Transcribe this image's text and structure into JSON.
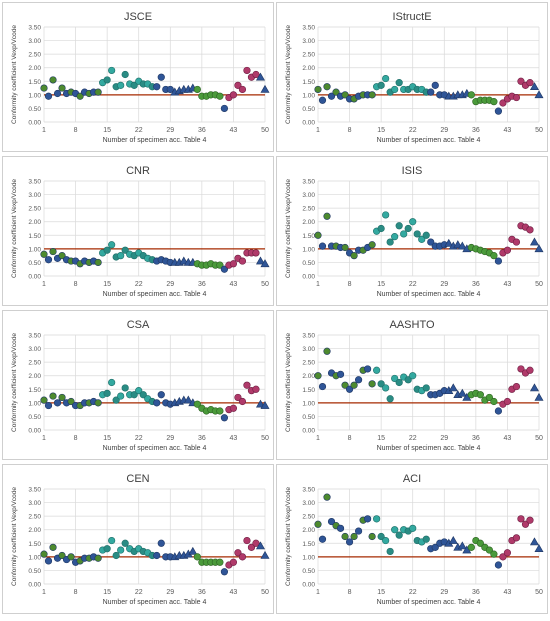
{
  "chart_data": [
    {
      "type": "scatter",
      "title": "JSCE",
      "xlabel": "Number of specimen acc. Table 4",
      "ylabel": "Conformity coefficient    Vexp/Vcode",
      "xlim": [
        1,
        50
      ],
      "ylim": [
        0,
        3.5
      ],
      "x_ticks": [
        "1",
        "8",
        "15",
        "22",
        "29",
        "36",
        "43",
        "50"
      ],
      "y_ticks": [
        "0.00",
        "0.50",
        "1.00",
        "1.50",
        "2.00",
        "2.50",
        "3.00",
        "3.50"
      ],
      "reference_line": 1.0,
      "grid": true,
      "x": [
        1,
        2,
        3,
        4,
        5,
        6,
        7,
        8,
        9,
        10,
        11,
        12,
        13,
        14,
        15,
        16,
        17,
        18,
        19,
        20,
        21,
        22,
        23,
        24,
        25,
        26,
        27,
        28,
        29,
        30,
        31,
        32,
        33,
        34,
        35,
        36,
        37,
        38,
        39,
        40,
        41,
        42,
        43,
        44,
        45,
        46,
        47,
        48,
        49,
        50
      ],
      "y": [
        1.25,
        0.95,
        1.55,
        1.05,
        1.25,
        1.05,
        1.1,
        1.05,
        0.95,
        1.1,
        1.05,
        1.1,
        1.1,
        1.45,
        1.55,
        1.9,
        1.3,
        1.35,
        1.75,
        1.4,
        1.35,
        1.5,
        1.4,
        1.4,
        1.3,
        1.3,
        1.65,
        1.2,
        1.2,
        1.1,
        1.15,
        1.2,
        1.2,
        1.25,
        1.2,
        0.95,
        0.95,
        1.0,
        1.0,
        0.95,
        0.5,
        0.9,
        1.0,
        1.35,
        1.2,
        1.9,
        1.65,
        1.75,
        1.65,
        1.2
      ]
    },
    {
      "type": "scatter",
      "title": "IStructE",
      "xlabel": "Number of specimen acc. Table 4",
      "ylabel": "Conformity coefficient    Vexp/Vcode",
      "xlim": [
        1,
        50
      ],
      "ylim": [
        0,
        3.5
      ],
      "x_ticks": [
        "1",
        "8",
        "15",
        "22",
        "29",
        "36",
        "43",
        "50"
      ],
      "y_ticks": [
        "0.00",
        "0.50",
        "1.00",
        "1.50",
        "2.00",
        "2.50",
        "3.00",
        "3.50"
      ],
      "reference_line": 1.0,
      "grid": true,
      "x": [
        1,
        2,
        3,
        4,
        5,
        6,
        7,
        8,
        9,
        10,
        11,
        12,
        13,
        14,
        15,
        16,
        17,
        18,
        19,
        20,
        21,
        22,
        23,
        24,
        25,
        26,
        27,
        28,
        29,
        30,
        31,
        32,
        33,
        34,
        35,
        36,
        37,
        38,
        39,
        40,
        41,
        42,
        43,
        44,
        45,
        46,
        47,
        48,
        49,
        50
      ],
      "y": [
        1.2,
        0.8,
        1.3,
        0.95,
        1.1,
        0.95,
        1.0,
        0.85,
        0.85,
        0.95,
        1.0,
        1.0,
        1.0,
        1.3,
        1.35,
        1.6,
        1.1,
        1.2,
        1.45,
        1.2,
        1.2,
        1.3,
        1.2,
        1.2,
        1.1,
        1.1,
        1.35,
        1.0,
        1.0,
        0.95,
        0.95,
        1.0,
        1.0,
        1.05,
        1.0,
        0.75,
        0.8,
        0.8,
        0.8,
        0.75,
        0.4,
        0.7,
        0.85,
        0.95,
        0.9,
        1.5,
        1.35,
        1.45,
        1.3,
        1.0
      ]
    },
    {
      "type": "scatter",
      "title": "CNR",
      "xlabel": "Number of specimen acc. Table 4",
      "ylabel": "Conformity coefficient    Vexp/Vcode",
      "xlim": [
        1,
        50
      ],
      "ylim": [
        0,
        3.5
      ],
      "x_ticks": [
        "1",
        "8",
        "15",
        "22",
        "29",
        "36",
        "43",
        "50"
      ],
      "y_ticks": [
        "0.00",
        "0.50",
        "1.00",
        "1.50",
        "2.00",
        "2.50",
        "3.00",
        "3.50"
      ],
      "reference_line": 1.0,
      "grid": true,
      "x": [
        1,
        2,
        3,
        4,
        5,
        6,
        7,
        8,
        9,
        10,
        11,
        12,
        13,
        14,
        15,
        16,
        17,
        18,
        19,
        20,
        21,
        22,
        23,
        24,
        25,
        26,
        27,
        28,
        29,
        30,
        31,
        32,
        33,
        34,
        35,
        36,
        37,
        38,
        39,
        40,
        41,
        42,
        43,
        44,
        45,
        46,
        47,
        48,
        49,
        50
      ],
      "y": [
        0.8,
        0.6,
        0.9,
        0.65,
        0.75,
        0.6,
        0.55,
        0.55,
        0.45,
        0.55,
        0.5,
        0.55,
        0.5,
        0.85,
        0.95,
        1.15,
        0.7,
        0.75,
        0.95,
        0.8,
        0.75,
        0.85,
        0.75,
        0.65,
        0.6,
        0.55,
        0.6,
        0.55,
        0.5,
        0.5,
        0.5,
        0.55,
        0.5,
        0.5,
        0.45,
        0.4,
        0.4,
        0.45,
        0.4,
        0.4,
        0.25,
        0.4,
        0.45,
        0.65,
        0.55,
        0.85,
        0.85,
        0.85,
        0.55,
        0.45
      ]
    },
    {
      "type": "scatter",
      "title": "ISIS",
      "xlabel": "Number of specimen acc. Table 4",
      "ylabel": "Conformity coefficient    Vexp/Vcode",
      "xlim": [
        1,
        50
      ],
      "ylim": [
        0,
        3.5
      ],
      "x_ticks": [
        "1",
        "8",
        "15",
        "22",
        "29",
        "36",
        "43",
        "50"
      ],
      "y_ticks": [
        "0.00",
        "0.50",
        "1.00",
        "1.50",
        "2.00",
        "2.50",
        "3.00",
        "3.50"
      ],
      "reference_line": 1.0,
      "grid": true,
      "x": [
        1,
        2,
        3,
        4,
        5,
        6,
        7,
        8,
        9,
        10,
        11,
        12,
        13,
        14,
        15,
        16,
        17,
        18,
        19,
        20,
        21,
        22,
        23,
        24,
        25,
        26,
        27,
        28,
        29,
        30,
        31,
        32,
        33,
        34,
        35,
        36,
        37,
        38,
        39,
        40,
        41,
        42,
        43,
        44,
        45,
        46,
        47,
        48,
        49,
        50
      ],
      "y": [
        1.5,
        1.1,
        2.2,
        1.1,
        1.1,
        1.05,
        1.05,
        0.85,
        0.75,
        0.95,
        0.95,
        1.05,
        1.15,
        1.65,
        1.75,
        2.25,
        1.25,
        1.45,
        1.85,
        1.55,
        1.75,
        2.0,
        1.55,
        1.35,
        1.5,
        1.25,
        1.1,
        1.1,
        1.15,
        1.2,
        1.1,
        1.15,
        1.1,
        1.0,
        1.05,
        1.0,
        0.95,
        0.9,
        0.85,
        0.75,
        0.55,
        0.85,
        0.95,
        1.35,
        1.25,
        1.85,
        1.8,
        1.7,
        1.25,
        1.0
      ]
    },
    {
      "type": "scatter",
      "title": "CSA",
      "xlabel": "Number of specimen acc. Table 4",
      "ylabel": "Conformity coefficient    Vexp/Vcode",
      "xlim": [
        1,
        50
      ],
      "ylim": [
        0,
        3.5
      ],
      "x_ticks": [
        "1",
        "8",
        "15",
        "22",
        "29",
        "36",
        "43",
        "50"
      ],
      "y_ticks": [
        "0.00",
        "0.50",
        "1.00",
        "1.50",
        "2.00",
        "2.50",
        "3.00",
        "3.50"
      ],
      "reference_line": 1.0,
      "grid": true,
      "x": [
        1,
        2,
        3,
        4,
        5,
        6,
        7,
        8,
        9,
        10,
        11,
        12,
        13,
        14,
        15,
        16,
        17,
        18,
        19,
        20,
        21,
        22,
        23,
        24,
        25,
        26,
        27,
        28,
        29,
        30,
        31,
        32,
        33,
        34,
        35,
        36,
        37,
        38,
        39,
        40,
        41,
        42,
        43,
        44,
        45,
        46,
        47,
        48,
        49,
        50
      ],
      "y": [
        1.1,
        0.9,
        1.25,
        1.0,
        1.2,
        1.0,
        1.05,
        0.9,
        0.9,
        1.0,
        1.0,
        1.05,
        1.0,
        1.3,
        1.35,
        1.75,
        1.1,
        1.25,
        1.55,
        1.3,
        1.3,
        1.45,
        1.3,
        1.15,
        1.05,
        1.0,
        1.3,
        1.0,
        0.95,
        1.0,
        1.05,
        1.1,
        1.1,
        1.0,
        0.95,
        0.8,
        0.7,
        0.75,
        0.7,
        0.7,
        0.45,
        0.75,
        0.8,
        1.2,
        1.05,
        1.65,
        1.45,
        1.5,
        0.95,
        0.9
      ]
    },
    {
      "type": "scatter",
      "title": "AASHTO",
      "xlabel": "Number of specimen acc. Table 4",
      "ylabel": "Conformity coefficient    Vexp/Vcode",
      "xlim": [
        1,
        50
      ],
      "ylim": [
        0,
        3.5
      ],
      "x_ticks": [
        "1",
        "8",
        "15",
        "22",
        "29",
        "36",
        "43",
        "50"
      ],
      "y_ticks": [
        "0.00",
        "0.50",
        "1.00",
        "1.50",
        "2.00",
        "2.50",
        "3.00",
        "3.50"
      ],
      "reference_line": 1.0,
      "grid": true,
      "x": [
        1,
        2,
        3,
        4,
        5,
        6,
        7,
        8,
        9,
        10,
        11,
        12,
        13,
        14,
        15,
        16,
        17,
        18,
        19,
        20,
        21,
        22,
        23,
        24,
        25,
        26,
        27,
        28,
        29,
        30,
        31,
        32,
        33,
        34,
        35,
        36,
        37,
        38,
        39,
        40,
        41,
        42,
        43,
        44,
        45,
        46,
        47,
        48,
        49,
        50
      ],
      "y": [
        2.0,
        1.6,
        2.9,
        2.1,
        2.0,
        2.05,
        1.65,
        1.5,
        1.65,
        1.85,
        2.2,
        2.25,
        1.7,
        2.2,
        1.7,
        1.55,
        1.15,
        1.9,
        1.75,
        1.95,
        1.85,
        2.0,
        1.5,
        1.45,
        1.55,
        1.3,
        1.3,
        1.35,
        1.45,
        1.45,
        1.55,
        1.3,
        1.35,
        1.2,
        1.3,
        1.35,
        1.3,
        1.1,
        1.2,
        1.05,
        0.7,
        0.95,
        1.05,
        1.5,
        1.6,
        2.25,
        2.1,
        2.2,
        1.55,
        1.2
      ]
    },
    {
      "type": "scatter",
      "title": "CEN",
      "xlabel": "Number of specimen acc. Table 4",
      "ylabel": "Conformity coefficient    Vexp/Vcode",
      "xlim": [
        1,
        50
      ],
      "ylim": [
        0,
        3.5
      ],
      "x_ticks": [
        "1",
        "8",
        "15",
        "22",
        "29",
        "36",
        "43",
        "50"
      ],
      "y_ticks": [
        "0.00",
        "0.50",
        "1.00",
        "1.50",
        "2.00",
        "2.50",
        "3.00",
        "3.50"
      ],
      "reference_line": 1.0,
      "grid": true,
      "x": [
        1,
        2,
        3,
        4,
        5,
        6,
        7,
        8,
        9,
        10,
        11,
        12,
        13,
        14,
        15,
        16,
        17,
        18,
        19,
        20,
        21,
        22,
        23,
        24,
        25,
        26,
        27,
        28,
        29,
        30,
        31,
        32,
        33,
        34,
        35,
        36,
        37,
        38,
        39,
        40,
        41,
        42,
        43,
        44,
        45,
        46,
        47,
        48,
        49,
        50
      ],
      "y": [
        1.1,
        0.85,
        1.35,
        0.95,
        1.05,
        0.9,
        1.0,
        0.8,
        0.85,
        0.95,
        0.95,
        1.0,
        0.95,
        1.25,
        1.3,
        1.6,
        1.05,
        1.25,
        1.5,
        1.3,
        1.2,
        1.3,
        1.2,
        1.15,
        1.05,
        1.05,
        1.5,
        1.0,
        1.0,
        1.0,
        1.05,
        1.05,
        1.1,
        1.2,
        1.0,
        0.8,
        0.8,
        0.8,
        0.8,
        0.8,
        0.45,
        0.7,
        0.8,
        1.15,
        1.0,
        1.6,
        1.35,
        1.5,
        1.4,
        1.05
      ]
    },
    {
      "type": "scatter",
      "title": "ACI",
      "xlabel": "Number of specimen acc. Table 4",
      "ylabel": "Conformity coefficient    Vexp/Vcode",
      "xlim": [
        1,
        50
      ],
      "ylim": [
        0,
        3.5
      ],
      "x_ticks": [
        "1",
        "8",
        "15",
        "22",
        "29",
        "36",
        "43",
        "50"
      ],
      "y_ticks": [
        "0.00",
        "0.50",
        "1.00",
        "1.50",
        "2.00",
        "2.50",
        "3.00",
        "3.50"
      ],
      "reference_line": 1.0,
      "grid": true,
      "x": [
        1,
        2,
        3,
        4,
        5,
        6,
        7,
        8,
        9,
        10,
        11,
        12,
        13,
        14,
        15,
        16,
        17,
        18,
        19,
        20,
        21,
        22,
        23,
        24,
        25,
        26,
        27,
        28,
        29,
        30,
        31,
        32,
        33,
        34,
        35,
        36,
        37,
        38,
        39,
        40,
        41,
        42,
        43,
        44,
        45,
        46,
        47,
        48,
        49,
        50
      ],
      "y": [
        2.2,
        1.65,
        3.2,
        2.3,
        2.15,
        2.05,
        1.75,
        1.55,
        1.75,
        1.95,
        2.35,
        2.4,
        1.75,
        2.4,
        1.75,
        1.6,
        1.2,
        2.0,
        1.8,
        2.0,
        1.95,
        2.05,
        1.6,
        1.55,
        1.65,
        1.3,
        1.35,
        1.5,
        1.55,
        1.5,
        1.6,
        1.35,
        1.4,
        1.25,
        1.35,
        1.6,
        1.5,
        1.35,
        1.25,
        1.1,
        0.7,
        1.0,
        1.15,
        1.6,
        1.7,
        2.4,
        2.2,
        2.35,
        1.55,
        1.3
      ]
    }
  ],
  "marker_groups": [
    {
      "range": [
        1,
        13
      ],
      "marker": "circle",
      "color": "#2f5597",
      "stroke": "#203864"
    },
    {
      "range": [
        14,
        25
      ],
      "marker": "circle",
      "color": "#33a9a0",
      "stroke": "#1f6e68"
    },
    {
      "range": [
        26,
        29
      ],
      "marker": "circle",
      "color": "#2f5597",
      "stroke": "#203864"
    },
    {
      "range": [
        30,
        34
      ],
      "marker": "triangle",
      "color": "#2f5597",
      "stroke": "#203864"
    },
    {
      "range": [
        35,
        40
      ],
      "marker": "circle",
      "color": "#4a9a3a",
      "stroke": "#2e6324"
    },
    {
      "range": [
        41,
        41
      ],
      "marker": "circle",
      "color": "#2f5597",
      "stroke": "#203864"
    },
    {
      "range": [
        42,
        48
      ],
      "marker": "circle",
      "color": "#b03a6a",
      "stroke": "#6e1f43"
    },
    {
      "range": [
        49,
        50
      ],
      "marker": "triangle",
      "color": "#2f5597",
      "stroke": "#203864"
    }
  ],
  "odd_circle_colors": {
    "1-13": "#4d8a2e",
    "14-25": "#2a8c84"
  },
  "reference_line_color": "#a52a00",
  "grid_color": "#d9d9d9",
  "panel_border_color": "#cfcfcf"
}
